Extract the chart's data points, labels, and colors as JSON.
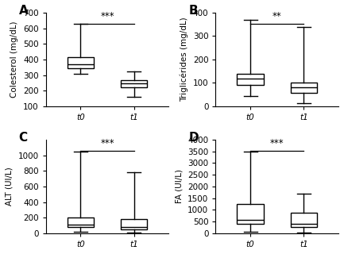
{
  "panels": [
    {
      "label": "A",
      "ylabel": "Colesterol (mg/dL)",
      "ylim": [
        100,
        700
      ],
      "yticks": [
        100,
        200,
        300,
        400,
        500,
        600,
        700
      ],
      "significance": "***",
      "boxes": [
        {
          "whislo": 310,
          "q1": 345,
          "med": 370,
          "q3": 415,
          "whishi": 630,
          "label": "t0"
        },
        {
          "whislo": 160,
          "q1": 220,
          "med": 248,
          "q3": 270,
          "whishi": 325,
          "label": "t1"
        }
      ]
    },
    {
      "label": "B",
      "ylabel": "Triglicérides (mg/dL)",
      "ylim": [
        0,
        400
      ],
      "yticks": [
        0,
        100,
        200,
        300,
        400
      ],
      "significance": "**",
      "boxes": [
        {
          "whislo": 45,
          "q1": 90,
          "med": 118,
          "q3": 138,
          "whishi": 370,
          "label": "t0"
        },
        {
          "whislo": 12,
          "q1": 58,
          "med": 82,
          "q3": 100,
          "whishi": 340,
          "label": "t1"
        }
      ]
    },
    {
      "label": "C",
      "ylabel": "ALT (UI/L)",
      "ylim": [
        0,
        1200
      ],
      "yticks": [
        0,
        200,
        400,
        600,
        800,
        1000
      ],
      "significance": "***",
      "boxes": [
        {
          "whislo": 18,
          "q1": 82,
          "med": 112,
          "q3": 205,
          "whishi": 1050,
          "label": "t0"
        },
        {
          "whislo": 15,
          "q1": 52,
          "med": 85,
          "q3": 185,
          "whishi": 780,
          "label": "t1"
        }
      ]
    },
    {
      "label": "D",
      "ylabel": "FA (UI/L)",
      "ylim": [
        0,
        4000
      ],
      "yticks": [
        0,
        500,
        1000,
        1500,
        2000,
        2500,
        3000,
        3500,
        4000
      ],
      "significance": "***",
      "boxes": [
        {
          "whislo": 80,
          "q1": 420,
          "med": 590,
          "q3": 1250,
          "whishi": 3500,
          "label": "t0"
        },
        {
          "whislo": 50,
          "q1": 280,
          "med": 420,
          "q3": 880,
          "whishi": 1700,
          "label": "t1"
        }
      ]
    }
  ],
  "box_color": "#ffffff",
  "box_edgecolor": "#000000",
  "whisker_color": "#000000",
  "median_color": "#000000",
  "cap_color": "#000000",
  "sig_line_color": "#000000",
  "background_color": "#ffffff",
  "linewidth": 1.0,
  "tick_fontsize": 7.5,
  "label_fontsize": 7.5,
  "panel_label_fontsize": 11,
  "sig_fontsize": 8.5
}
